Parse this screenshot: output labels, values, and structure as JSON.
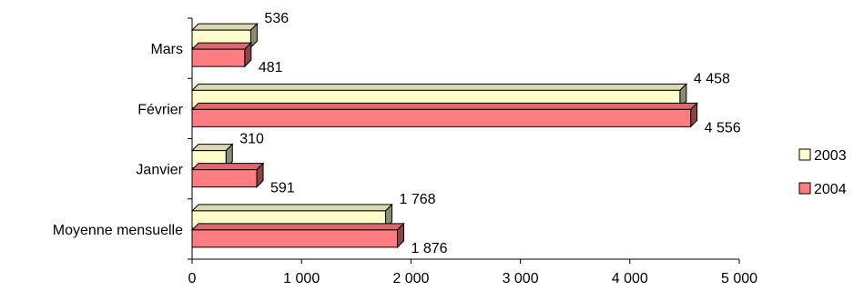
{
  "chart_data": {
    "type": "bar",
    "orientation": "horizontal",
    "style": "3d",
    "categories": [
      "Moyenne mensuelle",
      "Janvier",
      "Février",
      "Mars"
    ],
    "series": [
      {
        "name": "2003",
        "values": [
          1768,
          310,
          4458,
          536
        ],
        "value_labels": [
          "1 768",
          "310",
          "4 458",
          "536"
        ],
        "color": "#FFFFCC"
      },
      {
        "name": "2004",
        "values": [
          1876,
          591,
          4556,
          481
        ],
        "value_labels": [
          "1 876",
          "591",
          "4 556",
          "481"
        ],
        "color": "#FF7C80"
      }
    ],
    "xlim": [
      0,
      5000
    ],
    "x_ticks": [
      0,
      1000,
      2000,
      3000,
      4000,
      5000
    ],
    "x_tick_labels": [
      "0",
      "1 000",
      "2 000",
      "3 000",
      "4 000",
      "5 000"
    ],
    "grid": false,
    "legend_position": "right"
  }
}
